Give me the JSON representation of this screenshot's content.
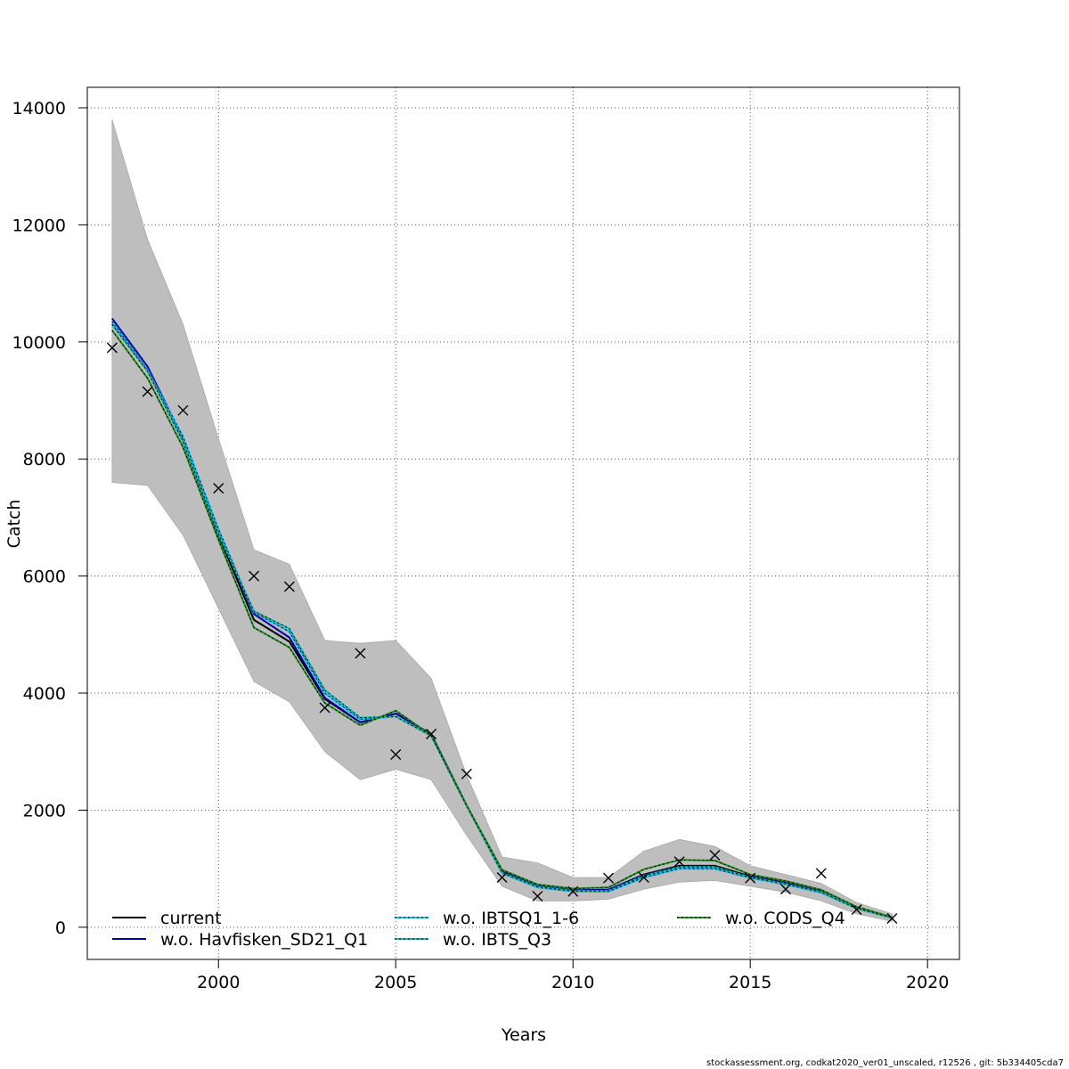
{
  "chart_data": {
    "type": "line",
    "xlabel": "Years",
    "ylabel": "Catch",
    "xlim": [
      1996.3,
      2020.9
    ],
    "ylim": [
      -550,
      14350
    ],
    "x_ticks": [
      2000,
      2005,
      2010,
      2015,
      2020
    ],
    "y_ticks": [
      0,
      2000,
      4000,
      6000,
      8000,
      10000,
      12000,
      14000
    ],
    "x_tick_labels": [
      "2000",
      "2005",
      "2010",
      "2015",
      "2020"
    ],
    "y_tick_labels": [
      "0",
      "2000",
      "4000",
      "6000",
      "8000",
      "10000",
      "12000",
      "14000"
    ],
    "grid": true,
    "legend_position": "bottom",
    "x": [
      1997,
      1998,
      1999,
      2000,
      2001,
      2002,
      2003,
      2004,
      2005,
      2006,
      2007,
      2008,
      2009,
      2010,
      2011,
      2012,
      2013,
      2014,
      2015,
      2016,
      2017,
      2018,
      2019
    ],
    "band": {
      "color": "#bebebe",
      "upper": [
        13800,
        11750,
        10300,
        8350,
        6450,
        6200,
        4900,
        4850,
        4900,
        4250,
        2600,
        1200,
        1100,
        850,
        850,
        1300,
        1500,
        1380,
        1050,
        900,
        750,
        420,
        230
      ],
      "lower": [
        7600,
        7550,
        6700,
        5450,
        4200,
        3850,
        3000,
        2520,
        2700,
        2520,
        1570,
        700,
        450,
        450,
        480,
        650,
        770,
        800,
        700,
        600,
        450,
        230,
        100
      ]
    },
    "observations": {
      "values": [
        9900,
        9150,
        8830,
        7500,
        6000,
        5820,
        3750,
        4680,
        2950,
        3300,
        2620,
        850,
        530,
        610,
        840,
        850,
        1120,
        1230,
        840,
        650,
        920,
        300,
        150
      ]
    },
    "series": [
      {
        "name": "current",
        "color": "#000000",
        "dash_color": "",
        "values": [
          10300,
          9500,
          8300,
          6700,
          5250,
          4880,
          3900,
          3500,
          3650,
          3300,
          2080,
          950,
          700,
          630,
          640,
          900,
          1050,
          1050,
          870,
          760,
          610,
          330,
          160
        ]
      },
      {
        "name": "w.o. Havfisken_SD21_Q1",
        "color": "#0000cd",
        "dash_color": "#000000",
        "values": [
          10400,
          9580,
          8350,
          6750,
          5350,
          4950,
          3920,
          3500,
          3650,
          3300,
          2080,
          950,
          700,
          630,
          640,
          890,
          1030,
          1020,
          860,
          750,
          600,
          330,
          160
        ]
      },
      {
        "name": "w.o. IBTSQ1_1-6",
        "color": "#00bfff",
        "dash_color": "#000000",
        "values": [
          10350,
          9520,
          8380,
          6800,
          5380,
          5050,
          4000,
          3550,
          3600,
          3270,
          2070,
          920,
          680,
          610,
          610,
          850,
          1000,
          1000,
          840,
          730,
          590,
          320,
          160
        ]
      },
      {
        "name": "w.o. IBTS_Q3",
        "color": "#20b2aa",
        "dash_color": "#000000",
        "values": [
          10300,
          9500,
          8300,
          6720,
          5400,
          5100,
          4050,
          3580,
          3600,
          3270,
          2070,
          930,
          690,
          620,
          620,
          880,
          1030,
          1030,
          850,
          740,
          600,
          320,
          160
        ]
      },
      {
        "name": "w.o. CODS_Q4",
        "color": "#228b22",
        "dash_color": "#000000",
        "values": [
          10200,
          9380,
          8200,
          6620,
          5120,
          4780,
          3830,
          3450,
          3700,
          3280,
          2080,
          980,
          730,
          660,
          680,
          990,
          1150,
          1140,
          900,
          790,
          640,
          350,
          170
        ]
      }
    ]
  },
  "footer": {
    "credit": "stockassessment.org, codkat2020_ver01_unscaled, r12526 , git: 5b334405cda7"
  }
}
